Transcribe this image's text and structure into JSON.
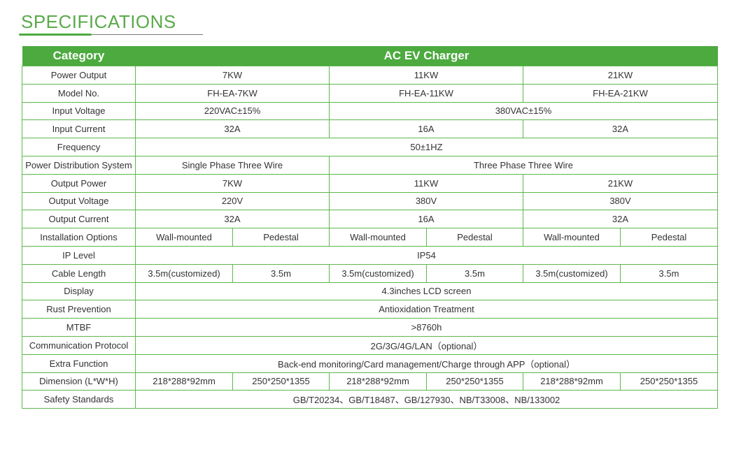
{
  "title": "SPECIFICATIONS",
  "header": {
    "category": "Category",
    "product": "AC EV Charger"
  },
  "colors": {
    "accent": "#4caa3f"
  },
  "rows": [
    {
      "label": "Power Output",
      "cells": [
        {
          "text": "7KW",
          "span": 2
        },
        {
          "text": "11KW",
          "span": 2
        },
        {
          "text": "21KW",
          "span": 2
        }
      ]
    },
    {
      "label": "Model No.",
      "cells": [
        {
          "text": "FH-EA-7KW",
          "span": 2
        },
        {
          "text": "FH-EA-11KW",
          "span": 2
        },
        {
          "text": "FH-EA-21KW",
          "span": 2
        }
      ]
    },
    {
      "label": "Input Voltage",
      "cells": [
        {
          "text": "220VAC±15%",
          "span": 2
        },
        {
          "text": "380VAC±15%",
          "span": 4
        }
      ]
    },
    {
      "label": "Input Current",
      "cells": [
        {
          "text": "32A",
          "span": 2
        },
        {
          "text": "16A",
          "span": 2
        },
        {
          "text": "32A",
          "span": 2
        }
      ]
    },
    {
      "label": "Frequency",
      "cells": [
        {
          "text": "50±1HZ",
          "span": 6
        }
      ]
    },
    {
      "label": "Power Distribution System",
      "cells": [
        {
          "text": "Single Phase Three Wire",
          "span": 2
        },
        {
          "text": "Three Phase Three Wire",
          "span": 4
        }
      ]
    },
    {
      "label": "Output Power",
      "cells": [
        {
          "text": "7KW",
          "span": 2
        },
        {
          "text": "11KW",
          "span": 2
        },
        {
          "text": "21KW",
          "span": 2
        }
      ]
    },
    {
      "label": "Output Voltage",
      "cells": [
        {
          "text": "220V",
          "span": 2
        },
        {
          "text": "380V",
          "span": 2
        },
        {
          "text": "380V",
          "span": 2
        }
      ]
    },
    {
      "label": "Output Current",
      "cells": [
        {
          "text": "32A",
          "span": 2
        },
        {
          "text": "16A",
          "span": 2
        },
        {
          "text": "32A",
          "span": 2
        }
      ]
    },
    {
      "label": "Installation Options",
      "cells": [
        {
          "text": "Wall-mounted",
          "span": 1
        },
        {
          "text": "Pedestal",
          "span": 1
        },
        {
          "text": "Wall-mounted",
          "span": 1
        },
        {
          "text": "Pedestal",
          "span": 1
        },
        {
          "text": "Wall-mounted",
          "span": 1
        },
        {
          "text": "Pedestal",
          "span": 1
        }
      ]
    },
    {
      "label": "IP Level",
      "cells": [
        {
          "text": "IP54",
          "span": 6
        }
      ]
    },
    {
      "label": "Cable Length",
      "cells": [
        {
          "text": "3.5m(customized)",
          "span": 1
        },
        {
          "text": "3.5m",
          "span": 1
        },
        {
          "text": "3.5m(customized)",
          "span": 1
        },
        {
          "text": "3.5m",
          "span": 1
        },
        {
          "text": "3.5m(customized)",
          "span": 1
        },
        {
          "text": "3.5m",
          "span": 1
        }
      ]
    },
    {
      "label": "Display",
      "cells": [
        {
          "text": "4.3inches LCD screen",
          "span": 6
        }
      ]
    },
    {
      "label": "Rust Prevention",
      "cells": [
        {
          "text": "Antioxidation Treatment",
          "span": 6
        }
      ]
    },
    {
      "label": "MTBF",
      "cells": [
        {
          "text": ">8760h",
          "span": 6
        }
      ]
    },
    {
      "label": "Communication Protocol",
      "cells": [
        {
          "text": "2G/3G/4G/LAN（optional）",
          "span": 6
        }
      ]
    },
    {
      "label": "Extra Function",
      "cells": [
        {
          "text": "Back-end monitoring/Card management/Charge through APP（optional）",
          "span": 6
        }
      ]
    },
    {
      "label": "Dimension (L*W*H)",
      "cells": [
        {
          "text": "218*288*92mm",
          "span": 1
        },
        {
          "text": "250*250*1355",
          "span": 1
        },
        {
          "text": "218*288*92mm",
          "span": 1
        },
        {
          "text": "250*250*1355",
          "span": 1
        },
        {
          "text": "218*288*92mm",
          "span": 1
        },
        {
          "text": "250*250*1355",
          "span": 1
        }
      ]
    },
    {
      "label": "Safety Standards",
      "cells": [
        {
          "text": "GB/T20234、GB/T18487、GB/127930、NB/T33008、NB/133002",
          "span": 6
        }
      ]
    }
  ]
}
